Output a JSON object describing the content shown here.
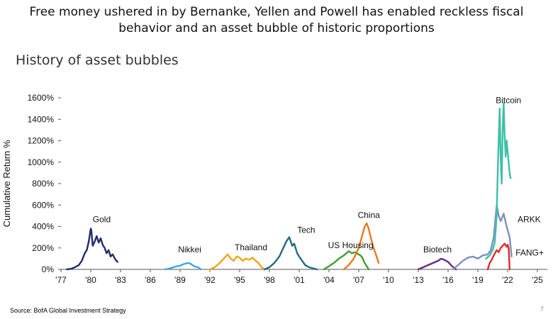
{
  "headline": {
    "line1": "Free money ushered in by Bernanke, Yellen and Powell has enabled reckless fiscal",
    "line2": "behavior and an asset bubble of historic proportions"
  },
  "footer": {
    "source": "Source: BofA Global Investment Strategy",
    "page_number": "7"
  },
  "chart_data": {
    "type": "line",
    "title": "History of asset bubbles",
    "xlabel": "",
    "ylabel": "Cumulative Return %",
    "xlim": [
      1977,
      2026
    ],
    "ylim": [
      0,
      1600
    ],
    "x_ticks": [
      1977,
      1980,
      1983,
      1986,
      1989,
      1992,
      1995,
      1998,
      2001,
      2004,
      2007,
      2010,
      2013,
      2016,
      2019,
      2022,
      2025
    ],
    "x_tick_labels": [
      "'77",
      "'80",
      "'83",
      "'86",
      "'89",
      "'92",
      "'95",
      "'98",
      "'01",
      "'04",
      "'07",
      "'10",
      "'13",
      "'16",
      "'19",
      "'22",
      "'25"
    ],
    "y_ticks": [
      0,
      200,
      400,
      600,
      800,
      1000,
      1200,
      1400,
      1600
    ],
    "y_tick_labels": [
      "0%",
      "200%",
      "400%",
      "600%",
      "800%",
      "1000%",
      "1200%",
      "1400%",
      "1600%"
    ],
    "grid": false,
    "series": [
      {
        "name": "Gold",
        "color": "#1f2d6b",
        "label_at": [
          1980.2,
          440
        ],
        "x": [
          1977.6,
          1978.0,
          1978.4,
          1978.8,
          1979.1,
          1979.4,
          1979.6,
          1979.8,
          1980.0,
          1980.05,
          1980.2,
          1980.4,
          1980.6,
          1980.8,
          1981.0,
          1981.2,
          1981.4,
          1981.6,
          1981.8,
          1982.0,
          1982.2,
          1982.5,
          1982.7
        ],
        "y": [
          0,
          5,
          20,
          40,
          80,
          150,
          180,
          260,
          380,
          370,
          220,
          260,
          310,
          250,
          290,
          230,
          200,
          150,
          180,
          120,
          140,
          90,
          70
        ]
      },
      {
        "name": "Nikkei",
        "color": "#3da6e0",
        "label_at": [
          1988.8,
          160
        ],
        "x": [
          1987.5,
          1988.0,
          1988.5,
          1989.0,
          1989.4,
          1989.8,
          1990.1,
          1990.4,
          1990.8,
          1991.1
        ],
        "y": [
          0,
          10,
          25,
          35,
          50,
          60,
          50,
          30,
          20,
          0
        ]
      },
      {
        "name": "Thailand",
        "color": "#f0a51c",
        "label_at": [
          1994.5,
          180
        ],
        "x": [
          1992.0,
          1992.5,
          1993.0,
          1993.4,
          1993.8,
          1994.1,
          1994.4,
          1994.7,
          1995.0,
          1995.3,
          1995.6,
          1996.0,
          1996.3,
          1996.6,
          1996.9,
          1997.2,
          1997.5
        ],
        "y": [
          0,
          20,
          60,
          100,
          140,
          100,
          80,
          120,
          110,
          80,
          100,
          90,
          110,
          80,
          60,
          20,
          0
        ]
      },
      {
        "name": "Tech",
        "color": "#1f6a80",
        "label_at": [
          2000.8,
          340
        ],
        "x": [
          1997.5,
          1998.0,
          1998.5,
          1999.0,
          1999.4,
          1999.7,
          2000.0,
          2000.3,
          2000.5,
          2000.8,
          2001.0,
          2001.3,
          2001.6,
          2002.0,
          2002.4,
          2002.8
        ],
        "y": [
          0,
          20,
          60,
          120,
          200,
          260,
          300,
          220,
          240,
          150,
          120,
          80,
          40,
          20,
          10,
          0
        ]
      },
      {
        "name": "US Housing",
        "color": "#3aa02a",
        "label_at": [
          2003.9,
          200
        ],
        "x": [
          2003.5,
          2004.0,
          2004.5,
          2005.0,
          2005.5,
          2006.0,
          2006.3,
          2006.6,
          2007.0,
          2007.3,
          2007.6,
          2008.0
        ],
        "y": [
          0,
          30,
          60,
          100,
          130,
          170,
          150,
          160,
          140,
          120,
          60,
          0
        ]
      },
      {
        "name": "China",
        "color": "#e87a1e",
        "label_at": [
          2006.9,
          480
        ],
        "x": [
          2005.5,
          2006.0,
          2006.5,
          2007.0,
          2007.3,
          2007.6,
          2007.8,
          2008.0,
          2008.2,
          2008.5,
          2008.8,
          2009.0
        ],
        "y": [
          0,
          40,
          100,
          200,
          300,
          400,
          430,
          380,
          300,
          200,
          120,
          60
        ]
      },
      {
        "name": "Biotech",
        "color": "#6a2a7f",
        "label_at": [
          2013.5,
          160
        ],
        "x": [
          2013.0,
          2013.5,
          2014.0,
          2014.5,
          2015.0,
          2015.3,
          2015.6,
          2016.0,
          2016.4,
          2016.8
        ],
        "y": [
          0,
          20,
          40,
          60,
          80,
          100,
          90,
          70,
          30,
          0
        ]
      },
      {
        "name": "ARKK",
        "color": "#7d90bf",
        "label_at": [
          2023.0,
          440
        ],
        "x": [
          2016.5,
          2017.0,
          2017.5,
          2018.0,
          2018.5,
          2019.0,
          2019.5,
          2020.0,
          2020.3,
          2020.6,
          2020.9,
          2021.1,
          2021.3,
          2021.6,
          2021.9,
          2022.2,
          2022.4
        ],
        "y": [
          0,
          40,
          80,
          110,
          120,
          100,
          130,
          140,
          180,
          300,
          600,
          500,
          450,
          520,
          400,
          300,
          120
        ]
      },
      {
        "name": "Bitcoin",
        "color": "#3dbfa8",
        "label_at": [
          2020.8,
          1550
        ],
        "x": [
          2019.8,
          2020.2,
          2020.5,
          2020.7,
          2020.9,
          2021.0,
          2021.1,
          2021.2,
          2021.3,
          2021.4,
          2021.5,
          2021.6,
          2021.7,
          2021.8,
          2021.9,
          2022.0,
          2022.1,
          2022.2,
          2022.3
        ],
        "y": [
          100,
          130,
          180,
          250,
          500,
          900,
          1200,
          1500,
          1050,
          800,
          1300,
          1550,
          1250,
          1050,
          1200,
          1100,
          1000,
          900,
          850
        ]
      },
      {
        "name": "FANG+",
        "color": "#e22a2a",
        "label_at": [
          2022.8,
          130
        ],
        "x": [
          2020.0,
          2020.2,
          2020.4,
          2020.6,
          2020.9,
          2021.1,
          2021.3,
          2021.5,
          2021.7,
          2021.9,
          2022.0,
          2022.1,
          2022.15,
          2022.2
        ],
        "y": [
          0,
          60,
          90,
          130,
          180,
          160,
          200,
          220,
          240,
          210,
          230,
          200,
          120,
          0
        ]
      }
    ]
  }
}
